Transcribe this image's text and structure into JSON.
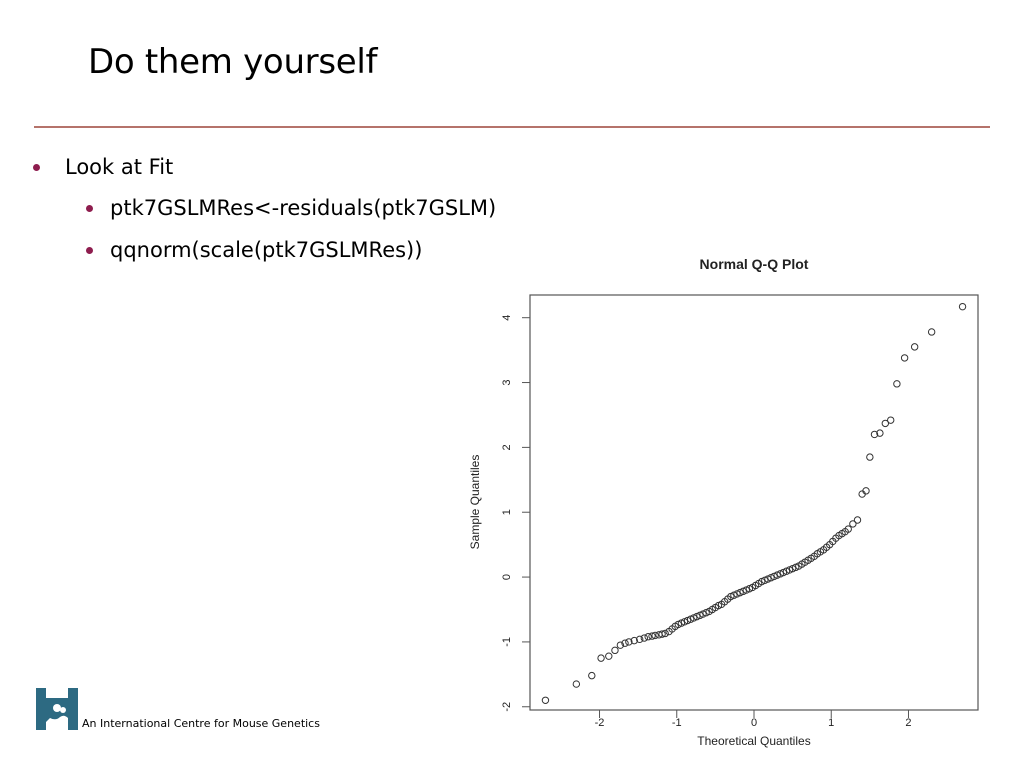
{
  "slide": {
    "title": "Do them yourself",
    "bullets": [
      "Look at Fit",
      "ptk7GSLMRes<-residuals(ptk7GSLM)",
      "qqnorm(scale(ptk7GSLMRes))"
    ],
    "footer": "An International Centre for Mouse Genetics"
  },
  "colors": {
    "accent_rule": "#b5736b",
    "bullet": "#8e1d4e",
    "logo": "#2d6a82"
  },
  "chart_data": {
    "type": "scatter",
    "title": "Normal Q-Q Plot",
    "xlabel": "Theoretical Quantiles",
    "ylabel": "Sample Quantiles",
    "xticks": [
      -2,
      -1,
      0,
      1,
      2
    ],
    "yticks": [
      -2,
      -1,
      0,
      1,
      2,
      3,
      4
    ],
    "xlim": [
      -2.9,
      2.9
    ],
    "ylim": [
      -2.05,
      4.35
    ],
    "grid": false,
    "points": [
      [
        -2.7,
        -1.9
      ],
      [
        -2.3,
        -1.65
      ],
      [
        -2.1,
        -1.52
      ],
      [
        -1.98,
        -1.25
      ],
      [
        -1.88,
        -1.22
      ],
      [
        -1.8,
        -1.13
      ],
      [
        -1.73,
        -1.05
      ],
      [
        -1.67,
        -1.02
      ],
      [
        -1.62,
        -1.0
      ],
      [
        -1.55,
        -0.98
      ],
      [
        -1.48,
        -0.96
      ],
      [
        -1.42,
        -0.94
      ],
      [
        -1.37,
        -0.92
      ],
      [
        -1.32,
        -0.91
      ],
      [
        -1.28,
        -0.9
      ],
      [
        -1.23,
        -0.89
      ],
      [
        -1.19,
        -0.88
      ],
      [
        -1.15,
        -0.87
      ],
      [
        -1.1,
        -0.84
      ],
      [
        -1.06,
        -0.8
      ],
      [
        -1.02,
        -0.76
      ],
      [
        -0.98,
        -0.73
      ],
      [
        -0.94,
        -0.71
      ],
      [
        -0.9,
        -0.69
      ],
      [
        -0.86,
        -0.67
      ],
      [
        -0.82,
        -0.65
      ],
      [
        -0.78,
        -0.63
      ],
      [
        -0.74,
        -0.61
      ],
      [
        -0.7,
        -0.59
      ],
      [
        -0.66,
        -0.57
      ],
      [
        -0.62,
        -0.55
      ],
      [
        -0.58,
        -0.53
      ],
      [
        -0.54,
        -0.5
      ],
      [
        -0.5,
        -0.47
      ],
      [
        -0.46,
        -0.44
      ],
      [
        -0.42,
        -0.42
      ],
      [
        -0.38,
        -0.38
      ],
      [
        -0.34,
        -0.34
      ],
      [
        -0.3,
        -0.3
      ],
      [
        -0.26,
        -0.28
      ],
      [
        -0.22,
        -0.26
      ],
      [
        -0.18,
        -0.24
      ],
      [
        -0.14,
        -0.22
      ],
      [
        -0.1,
        -0.2
      ],
      [
        -0.06,
        -0.18
      ],
      [
        -0.02,
        -0.16
      ],
      [
        0.02,
        -0.13
      ],
      [
        0.06,
        -0.1
      ],
      [
        0.1,
        -0.07
      ],
      [
        0.14,
        -0.05
      ],
      [
        0.18,
        -0.03
      ],
      [
        0.22,
        -0.01
      ],
      [
        0.26,
        0.01
      ],
      [
        0.3,
        0.03
      ],
      [
        0.34,
        0.05
      ],
      [
        0.38,
        0.07
      ],
      [
        0.42,
        0.09
      ],
      [
        0.46,
        0.11
      ],
      [
        0.5,
        0.13
      ],
      [
        0.54,
        0.15
      ],
      [
        0.58,
        0.17
      ],
      [
        0.62,
        0.2
      ],
      [
        0.66,
        0.23
      ],
      [
        0.7,
        0.26
      ],
      [
        0.74,
        0.29
      ],
      [
        0.78,
        0.32
      ],
      [
        0.82,
        0.36
      ],
      [
        0.86,
        0.39
      ],
      [
        0.9,
        0.42
      ],
      [
        0.94,
        0.46
      ],
      [
        0.98,
        0.5
      ],
      [
        1.02,
        0.55
      ],
      [
        1.06,
        0.6
      ],
      [
        1.1,
        0.64
      ],
      [
        1.14,
        0.67
      ],
      [
        1.18,
        0.7
      ],
      [
        1.22,
        0.74
      ],
      [
        1.28,
        0.82
      ],
      [
        1.34,
        0.88
      ],
      [
        1.4,
        1.28
      ],
      [
        1.45,
        1.33
      ],
      [
        1.5,
        1.85
      ],
      [
        1.56,
        2.2
      ],
      [
        1.63,
        2.22
      ],
      [
        1.7,
        2.37
      ],
      [
        1.77,
        2.42
      ],
      [
        1.85,
        2.98
      ],
      [
        1.95,
        3.38
      ],
      [
        2.08,
        3.55
      ],
      [
        2.3,
        3.78
      ],
      [
        2.7,
        4.17
      ]
    ]
  }
}
